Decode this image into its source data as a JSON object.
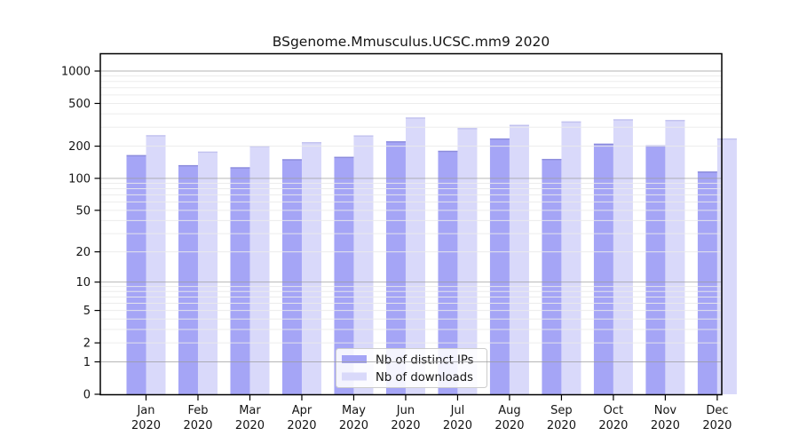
{
  "title": "BSgenome.Mmusculus.UCSC.mm9 2020",
  "chart_data": {
    "type": "bar",
    "title": "BSgenome.Mmusculus.UCSC.mm9 2020",
    "categories": [
      "Jan",
      "Feb",
      "Mar",
      "Apr",
      "May",
      "Jun",
      "Jul",
      "Aug",
      "Sep",
      "Oct",
      "Nov",
      "Dec"
    ],
    "year_label": "2020",
    "series": [
      {
        "name": "Nb of distinct IPs",
        "values": [
          165,
          133,
          127,
          151,
          159,
          222,
          181,
          236,
          152,
          211,
          203,
          116
        ]
      },
      {
        "name": "Nb of downloads",
        "values": [
          253,
          178,
          201,
          218,
          252,
          370,
          295,
          316,
          340,
          356,
          351,
          236
        ]
      }
    ],
    "yscale": "log10(value+1)",
    "ytick_labels": [
      1000,
      500,
      200,
      100,
      50,
      20,
      10,
      5,
      2,
      1,
      0
    ],
    "ylim": [
      0,
      1100
    ],
    "grid": "horizontal, minor log lines light, decade lines dark, drawn over bars",
    "legend_position": "inside bottom-center"
  },
  "legend": {
    "items": [
      {
        "label": "Nb of distinct IPs"
      },
      {
        "label": "Nb of downloads"
      }
    ]
  },
  "colors": {
    "distinct_ips": "#a5a5f6",
    "distinct_ips_edge": "#8c8cdc",
    "downloads": "#d9d9fa",
    "downloads_edge": "#c2c2ef",
    "grid_minor": "#ebebeb",
    "grid_major": "#9b9b9b",
    "axis": "#000000",
    "text": "#151515",
    "legend_border": "#cccccc",
    "legend_bg": "#ffffff"
  }
}
